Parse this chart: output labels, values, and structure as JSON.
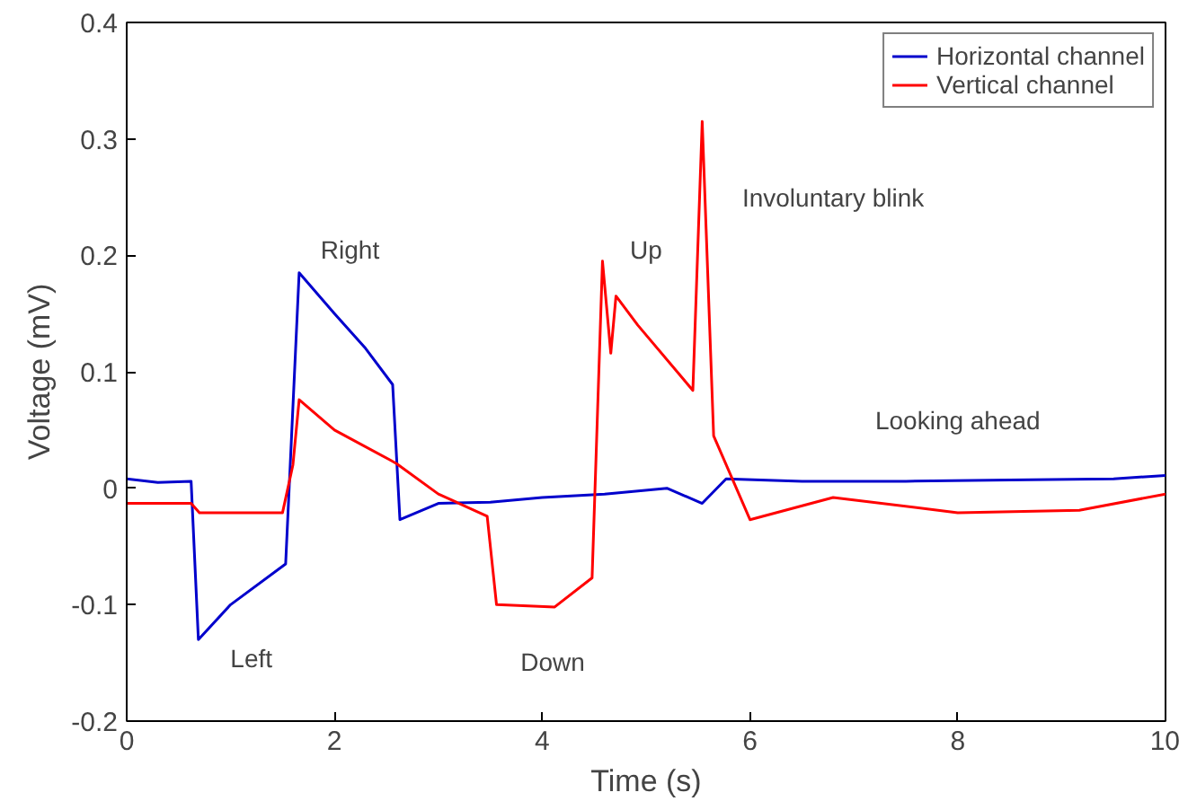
{
  "chart_data": {
    "type": "line",
    "xlabel": "Time (s)",
    "ylabel": "Voltage (mV)",
    "xlim": [
      0,
      10
    ],
    "ylim": [
      -0.2,
      0.4
    ],
    "xticks": [
      0,
      2,
      4,
      6,
      8,
      10
    ],
    "yticks": [
      -0.2,
      -0.1,
      0,
      0.1,
      0.2,
      0.3,
      0.4
    ],
    "grid": false,
    "legend": "top right",
    "line_style": "solid",
    "marker": "none",
    "series": [
      {
        "name": "Horizontal channel",
        "color": "#0000cc",
        "x": [
          0,
          0.3,
          0.62,
          0.69,
          1.0,
          1.53,
          1.66,
          2.0,
          2.3,
          2.56,
          2.63,
          3.0,
          3.5,
          4.0,
          4.6,
          5.2,
          5.54,
          5.77,
          6.5,
          7.5,
          8.5,
          9.5,
          10
        ],
        "values": [
          0.008,
          0.005,
          0.006,
          -0.13,
          -0.1,
          -0.065,
          0.185,
          0.15,
          0.12,
          0.089,
          -0.027,
          -0.013,
          -0.012,
          -0.008,
          -0.005,
          0.0,
          -0.013,
          0.008,
          0.006,
          0.006,
          0.007,
          0.008,
          0.011
        ]
      },
      {
        "name": "Vertical channel",
        "color": "#ff0000",
        "x": [
          0,
          0.62,
          0.7,
          1.5,
          1.6,
          1.66,
          2.0,
          2.54,
          2.6,
          3.0,
          3.47,
          3.56,
          4.12,
          4.48,
          4.58,
          4.66,
          4.71,
          4.92,
          5.45,
          5.54,
          5.65,
          6.0,
          6.8,
          8.0,
          9.17,
          10
        ],
        "values": [
          -0.013,
          -0.013,
          -0.021,
          -0.021,
          0.02,
          0.076,
          0.05,
          0.024,
          0.021,
          -0.005,
          -0.024,
          -0.1,
          -0.102,
          -0.077,
          0.195,
          0.116,
          0.165,
          0.14,
          0.084,
          0.315,
          0.045,
          -0.027,
          -0.008,
          -0.021,
          -0.019,
          -0.005
        ]
      }
    ],
    "annotations": [
      "Left",
      "Right",
      "Down",
      "Up",
      "Involuntary blink",
      "Looking ahead"
    ]
  }
}
